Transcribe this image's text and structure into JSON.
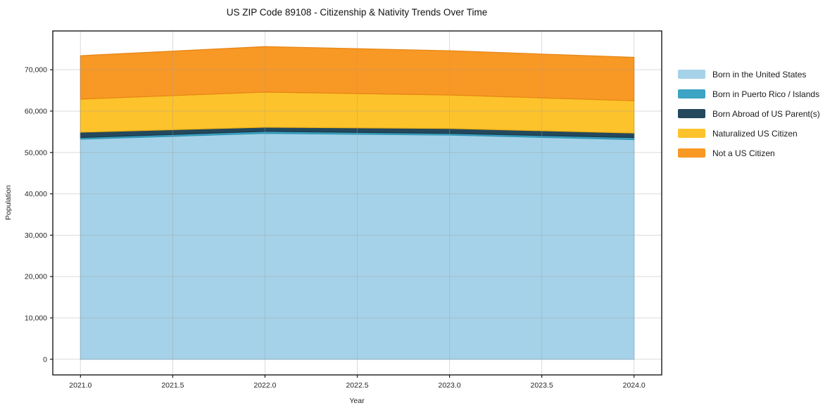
{
  "chart_data": {
    "type": "area",
    "title": "US ZIP Code 89108 - Citizenship & Nativity Trends Over Time",
    "xlabel": "Year",
    "ylabel": "Population",
    "x": [
      2021,
      2022,
      2023,
      2024
    ],
    "series": [
      {
        "name": "Born in the United States",
        "color": "#a5d2e8",
        "edge": "#8ec4de",
        "values": [
          53200,
          54600,
          54200,
          53100
        ]
      },
      {
        "name": "Born in Puerto Rico / Islands",
        "color": "#3da4c3",
        "edge": "#2e93b3",
        "values": [
          400,
          500,
          400,
          500
        ]
      },
      {
        "name": "Born Abroad of US Parent(s)",
        "color": "#24485c",
        "edge": "#1a3a4c",
        "values": [
          1300,
          1000,
          1200,
          1100
        ]
      },
      {
        "name": "Naturalized US Citizen",
        "color": "#fdc32c",
        "edge": "#eaaf18",
        "values": [
          8000,
          8500,
          8100,
          7800
        ]
      },
      {
        "name": "Not a US Citizen",
        "color": "#f89825",
        "edge": "#e68514",
        "values": [
          10500,
          11000,
          10700,
          10500
        ]
      }
    ],
    "xlim": [
      2020.85,
      2024.15
    ],
    "ylim": [
      -3780,
      79380
    ],
    "xticks": [
      {
        "v": 2021.0,
        "label": "2021.0"
      },
      {
        "v": 2021.5,
        "label": "2021.5"
      },
      {
        "v": 2022.0,
        "label": "2022.0"
      },
      {
        "v": 2022.5,
        "label": "2022.5"
      },
      {
        "v": 2023.0,
        "label": "2023.0"
      },
      {
        "v": 2023.5,
        "label": "2023.5"
      },
      {
        "v": 2024.0,
        "label": "2024.0"
      }
    ],
    "yticks": [
      {
        "v": 0,
        "label": "0"
      },
      {
        "v": 10000,
        "label": "10,000"
      },
      {
        "v": 20000,
        "label": "20,000"
      },
      {
        "v": 30000,
        "label": "30,000"
      },
      {
        "v": 40000,
        "label": "40,000"
      },
      {
        "v": 50000,
        "label": "50,000"
      },
      {
        "v": 60000,
        "label": "60,000"
      },
      {
        "v": 70000,
        "label": "70,000"
      }
    ],
    "grid": true,
    "legend_position": "right"
  },
  "colors": {
    "spine": "#1a1a1a",
    "tick_text": "#262626",
    "title_text": "#111111",
    "gridline": "rgba(160,160,160,0.38)"
  }
}
